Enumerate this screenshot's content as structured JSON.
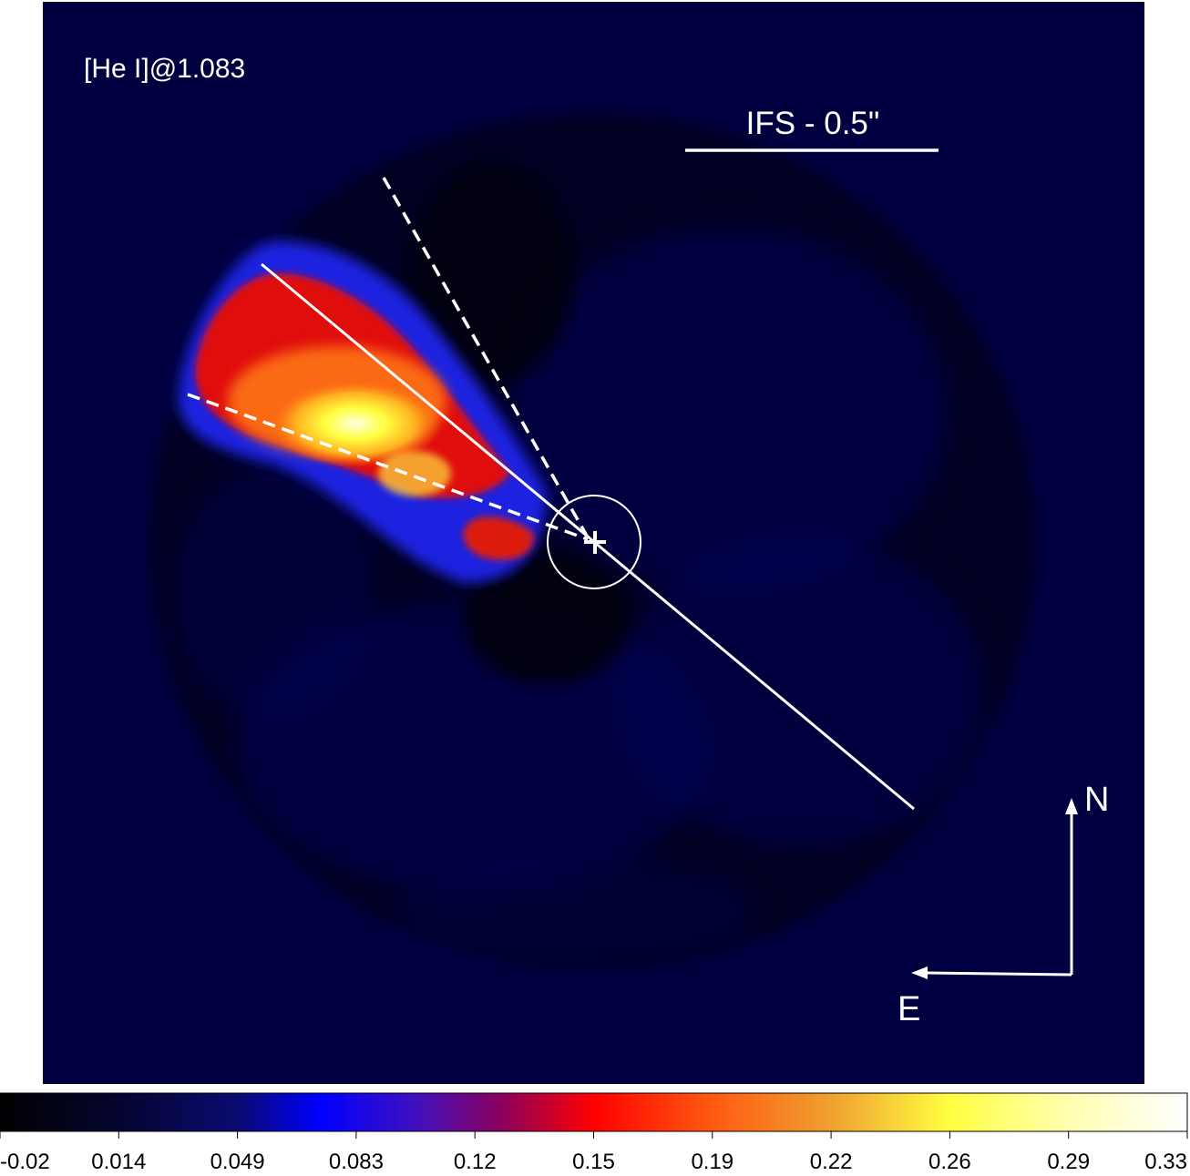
{
  "image": {
    "line_label": "[He I]@1.083",
    "scale_bar_label": "IFS - 0.5\"",
    "compass": {
      "north": "N",
      "east": "E"
    }
  },
  "colorbar": {
    "tick_labels": [
      "-0.02",
      "0.014",
      "0.049",
      "0.083",
      "0.12",
      "0.15",
      "0.19",
      "0.22",
      "0.26",
      "0.29",
      "0.33"
    ],
    "colormap": [
      "#000000",
      "#0a0a50",
      "#0000ff",
      "#8a0066",
      "#ff0000",
      "#ffff33",
      "#ffffff"
    ]
  }
}
